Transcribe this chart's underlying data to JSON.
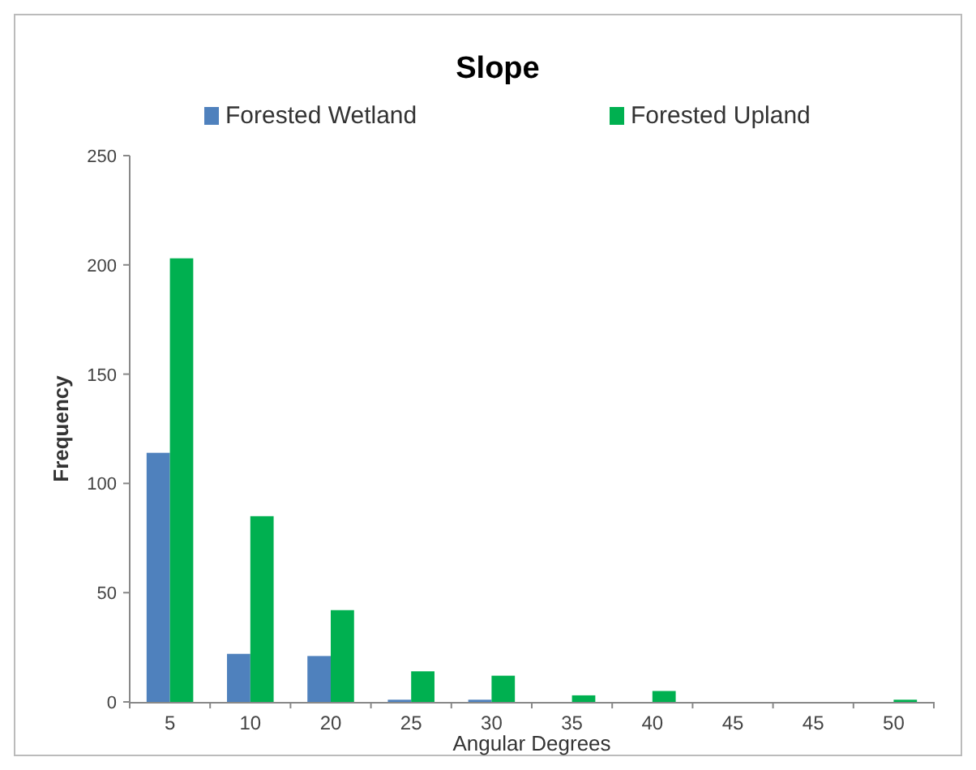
{
  "chart_data": {
    "type": "bar",
    "title": "Slope",
    "xlabel": "Angular Degrees",
    "ylabel": "Frequency",
    "categories": [
      "5",
      "10",
      "20",
      "25",
      "30",
      "35",
      "40",
      "45",
      "45",
      "50"
    ],
    "series": [
      {
        "name": "Forested Wetland",
        "color": "#4f81bd",
        "values": [
          114,
          22,
          21,
          1,
          1,
          0,
          0,
          0,
          0,
          0
        ]
      },
      {
        "name": "Forested Upland",
        "color": "#00b050",
        "values": [
          203,
          85,
          42,
          14,
          12,
          3,
          5,
          0,
          0,
          1
        ]
      }
    ],
    "ylim": [
      0,
      250
    ],
    "yticks": [
      0,
      50,
      100,
      150,
      200,
      250
    ],
    "grid": false,
    "legend": "top"
  }
}
